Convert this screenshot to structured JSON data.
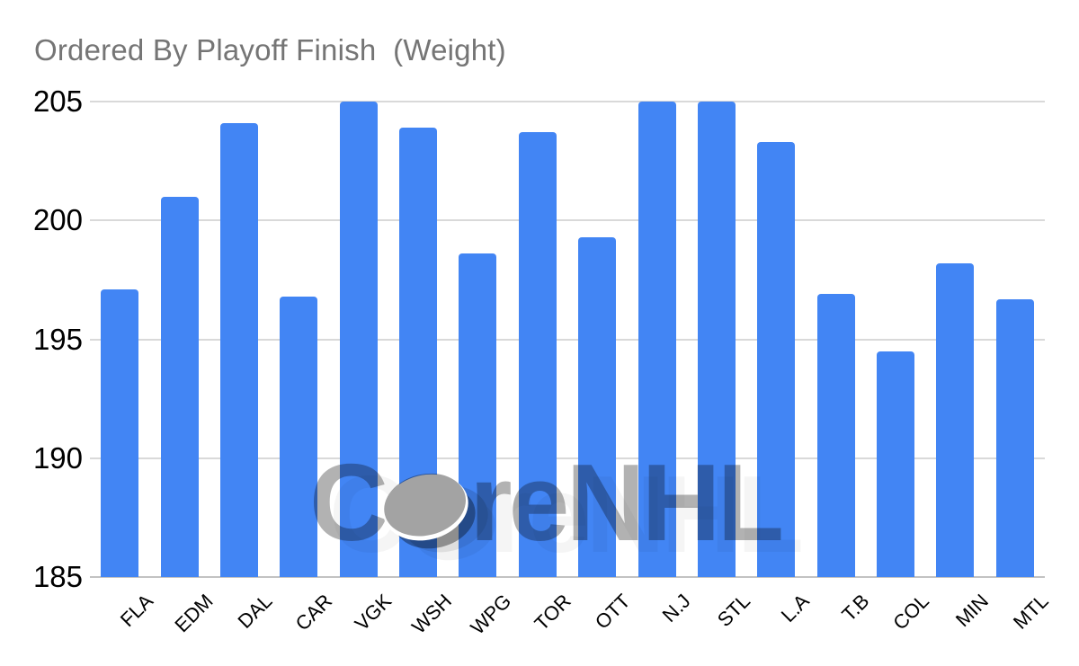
{
  "chart_data": {
    "type": "bar",
    "title": "Ordered By Playoff Finish  (Weight)",
    "categories": [
      "FLA",
      "EDM",
      "DAL",
      "CAR",
      "VGK",
      "WSH",
      "WPG",
      "TOR",
      "OTT",
      "N.J",
      "STL",
      "L.A",
      "T.B",
      "COL",
      "MIN",
      "MTL"
    ],
    "values": [
      197.1,
      201.0,
      204.1,
      196.8,
      205.0,
      203.9,
      198.6,
      203.7,
      199.3,
      205.0,
      205.0,
      203.3,
      196.9,
      194.5,
      198.2,
      196.7
    ],
    "xlabel": "",
    "ylabel": "",
    "ylim": [
      185,
      205
    ],
    "y_ticks": [
      205,
      200,
      195,
      190,
      185
    ],
    "grid": true,
    "legend_position": "none",
    "bar_color": "#4285f4",
    "gridline_color": "#d9d9d9",
    "axis_line_color": "#c2c2c2",
    "title_color": "#757575",
    "tick_label_color": "#000000"
  },
  "watermark": {
    "prefix": "C",
    "middle": "re",
    "suffix": "NHL",
    "icon": "hockey-puck-icon",
    "color": "rgba(0,0,0,0.30)",
    "puck_color": "rgba(0,0,0,0.36)"
  }
}
